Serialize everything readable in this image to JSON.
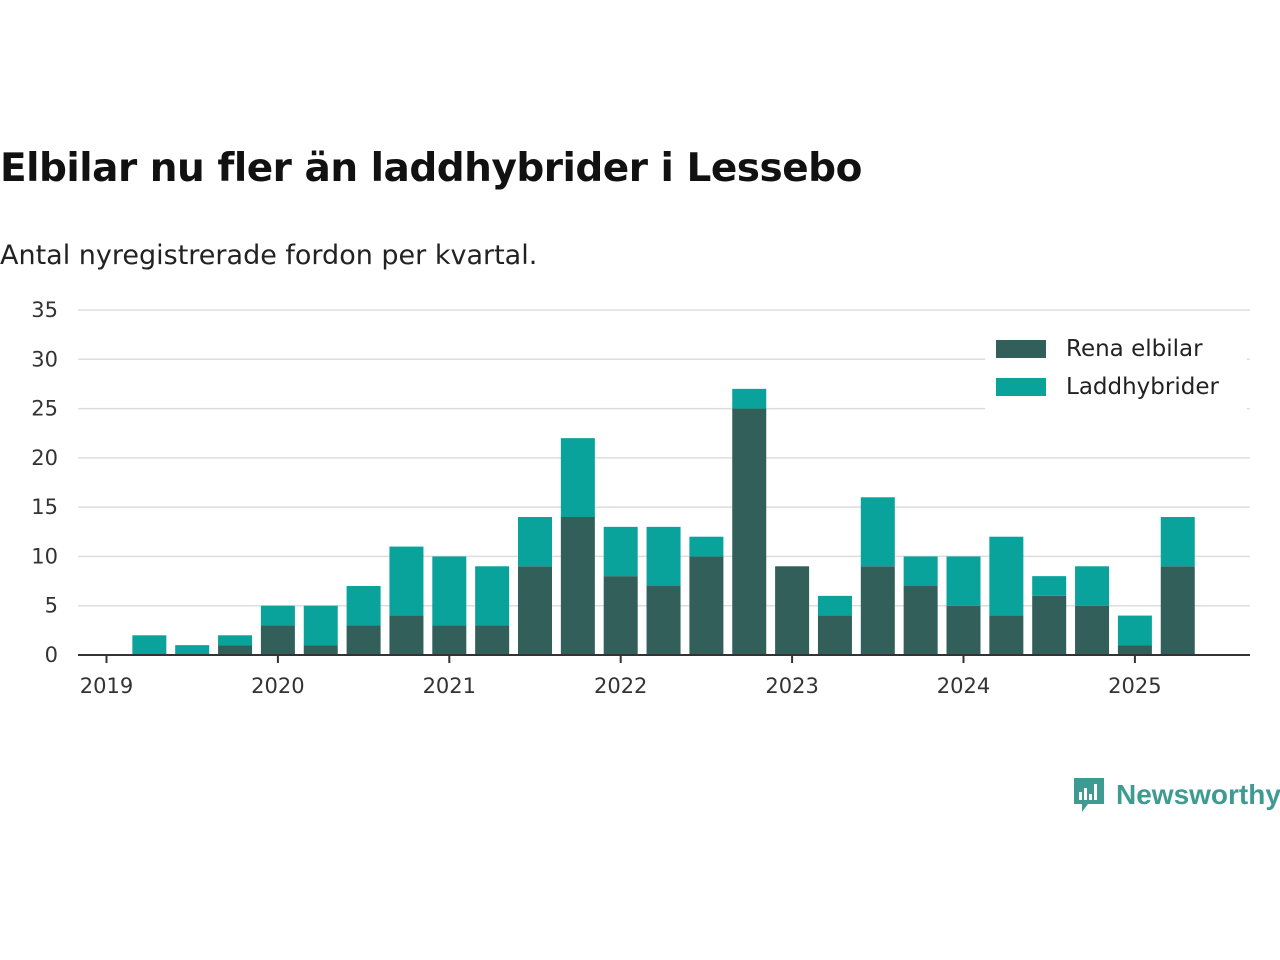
{
  "title": "Elbilar nu fler än laddhybrider i Lessebo",
  "subtitle": "Antal nyregistrerade fordon per kvartal.",
  "brand": "Newsworthy",
  "colors": {
    "elbil": "#325f5a",
    "hybrid": "#0aa39b",
    "grid": "#dddddd",
    "axis": "#333333"
  },
  "chart_data": {
    "type": "bar",
    "stacked": true,
    "x": [
      "2019-Q1",
      "2019-Q2",
      "2019-Q3",
      "2019-Q4",
      "2020-Q1",
      "2020-Q2",
      "2020-Q3",
      "2020-Q4",
      "2021-Q1",
      "2021-Q2",
      "2021-Q3",
      "2021-Q4",
      "2022-Q1",
      "2022-Q2",
      "2022-Q3",
      "2022-Q4",
      "2023-Q1",
      "2023-Q2",
      "2023-Q3",
      "2023-Q4",
      "2024-Q1",
      "2024-Q2",
      "2024-Q3",
      "2024-Q4",
      "2025-Q1",
      "2025-Q2"
    ],
    "series": [
      {
        "name": "Rena elbilar",
        "values": [
          0,
          0,
          0,
          1,
          3,
          1,
          3,
          4,
          3,
          3,
          9,
          14,
          8,
          7,
          10,
          25,
          9,
          4,
          9,
          7,
          5,
          4,
          6,
          5,
          1,
          9
        ]
      },
      {
        "name": "Laddhybrider",
        "values": [
          0,
          2,
          1,
          1,
          2,
          4,
          4,
          7,
          7,
          6,
          5,
          8,
          5,
          6,
          2,
          2,
          0,
          2,
          7,
          3,
          5,
          8,
          2,
          4,
          3,
          5
        ]
      }
    ],
    "x_ticks": [
      "2019",
      "2020",
      "2021",
      "2022",
      "2023",
      "2024",
      "2025"
    ],
    "y_ticks": [
      0,
      5,
      10,
      15,
      20,
      25,
      30,
      35
    ],
    "ylim": [
      0,
      35
    ],
    "grid": true,
    "legend_position": "top-right"
  }
}
